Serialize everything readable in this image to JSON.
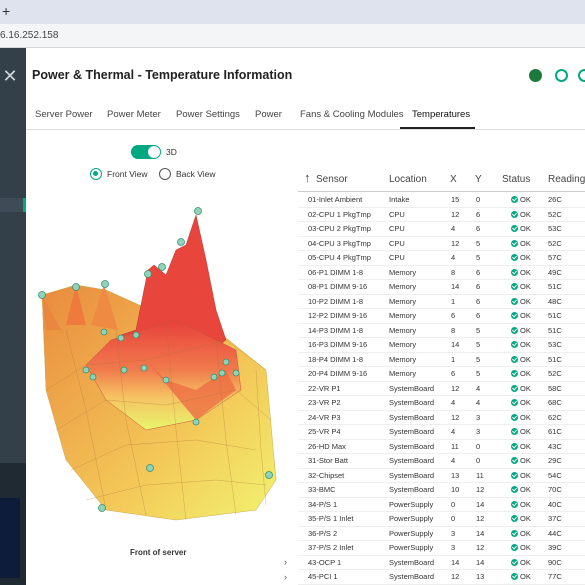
{
  "browser": {
    "plus": "+",
    "url": "6.16.252.158"
  },
  "page": {
    "title": "Power & Thermal - Temperature Information"
  },
  "tabs": [
    "Server Power",
    "Power Meter",
    "Power Settings",
    "Power",
    "Fans & Cooling Modules",
    "Temperatures"
  ],
  "view": {
    "toggle_label": "3D",
    "front_view": "Front View",
    "back_view": "Back View",
    "caption": "Front of server"
  },
  "table": {
    "headers": [
      "Sensor",
      "Location",
      "X",
      "Y",
      "Status",
      "Reading"
    ],
    "rows": [
      [
        "01-Inlet Ambient",
        "Intake",
        "15",
        "0",
        "OK",
        "26C"
      ],
      [
        "02-CPU 1 PkgTmp",
        "CPU",
        "12",
        "6",
        "OK",
        "52C"
      ],
      [
        "03-CPU 2 PkgTmp",
        "CPU",
        "4",
        "6",
        "OK",
        "53C"
      ],
      [
        "04-CPU 3 PkgTmp",
        "CPU",
        "12",
        "5",
        "OK",
        "52C"
      ],
      [
        "05-CPU 4 PkgTmp",
        "CPU",
        "4",
        "5",
        "OK",
        "57C"
      ],
      [
        "06-P1 DIMM 1-8",
        "Memory",
        "8",
        "6",
        "OK",
        "49C"
      ],
      [
        "08-P1 DIMM 9-16",
        "Memory",
        "14",
        "6",
        "OK",
        "51C"
      ],
      [
        "10-P2 DIMM 1-8",
        "Memory",
        "1",
        "6",
        "OK",
        "48C"
      ],
      [
        "12-P2 DIMM 9-16",
        "Memory",
        "6",
        "6",
        "OK",
        "51C"
      ],
      [
        "14-P3 DIMM 1-8",
        "Memory",
        "8",
        "5",
        "OK",
        "51C"
      ],
      [
        "16-P3 DIMM 9-16",
        "Memory",
        "14",
        "5",
        "OK",
        "53C"
      ],
      [
        "18-P4 DIMM 1-8",
        "Memory",
        "1",
        "5",
        "OK",
        "51C"
      ],
      [
        "20-P4 DIMM 9-16",
        "Memory",
        "6",
        "5",
        "OK",
        "52C"
      ],
      [
        "22-VR P1",
        "SystemBoard",
        "12",
        "4",
        "OK",
        "58C"
      ],
      [
        "23-VR P2",
        "SystemBoard",
        "4",
        "4",
        "OK",
        "68C"
      ],
      [
        "24-VR P3",
        "SystemBoard",
        "12",
        "3",
        "OK",
        "62C"
      ],
      [
        "25-VR P4",
        "SystemBoard",
        "4",
        "3",
        "OK",
        "61C"
      ],
      [
        "26-HD Max",
        "SystemBoard",
        "11",
        "0",
        "OK",
        "43C"
      ],
      [
        "31-Stor Batt",
        "SystemBoard",
        "4",
        "0",
        "OK",
        "29C"
      ],
      [
        "32-Chipset",
        "SystemBoard",
        "13",
        "11",
        "OK",
        "54C"
      ],
      [
        "33-BMC",
        "SystemBoard",
        "10",
        "12",
        "OK",
        "70C"
      ],
      [
        "34-P/S 1",
        "PowerSupply",
        "0",
        "14",
        "OK",
        "40C"
      ],
      [
        "35-P/S 1 Inlet",
        "PowerSupply",
        "0",
        "12",
        "OK",
        "37C"
      ],
      [
        "36-P/S 2",
        "PowerSupply",
        "3",
        "14",
        "OK",
        "44C"
      ],
      [
        "37-P/S 2 Inlet",
        "PowerSupply",
        "3",
        "12",
        "OK",
        "39C"
      ],
      [
        "43-OCP 1",
        "SystemBoard",
        "14",
        "14",
        "OK",
        "90C"
      ],
      [
        "45-PCI 1",
        "SystemBoard",
        "12",
        "13",
        "OK",
        "77C"
      ]
    ]
  },
  "colors": {
    "accent": "#01a982",
    "sidebar": "#33404a"
  }
}
